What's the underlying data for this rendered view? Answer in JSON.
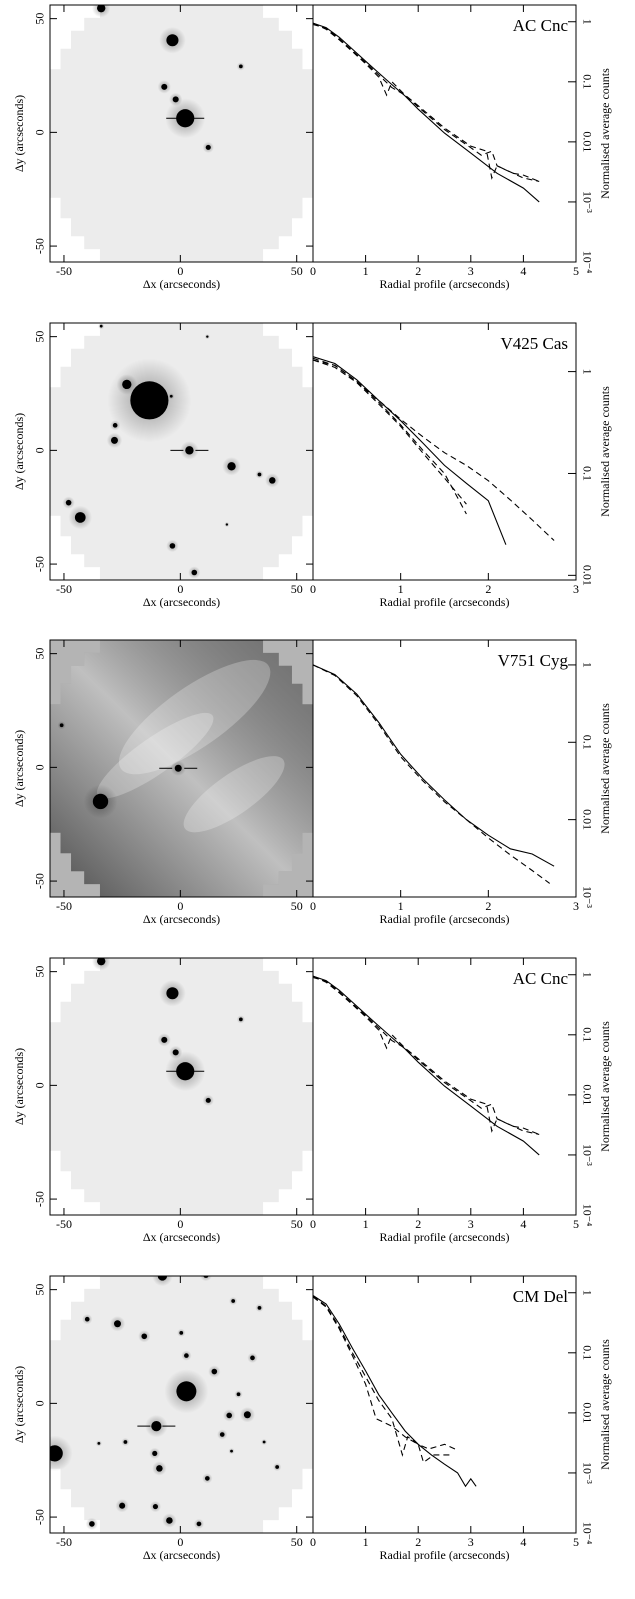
{
  "chart_data": [
    {
      "type": "image",
      "xlabel": "Δx (arcseconds)",
      "ylabel": "Δy (arcseconds)",
      "xlim": [
        -56,
        57
      ],
      "ylim": [
        -57,
        56
      ],
      "xticks": [
        -50,
        0,
        50
      ],
      "yticks": [
        -50,
        0,
        50
      ],
      "background": "#ececec",
      "outside": "#ffffff",
      "points": {
        "x": [
          2.1,
          -3.4,
          -34,
          -6.9,
          -2,
          26,
          12
        ],
        "y": [
          6.2,
          40.5,
          54.6,
          20,
          14.5,
          29,
          -6.6
        ],
        "size": [
          3.9,
          2.6,
          1.8,
          1.3,
          1.3,
          0.8,
          1.1
        ]
      },
      "marker": {
        "x": 2.1,
        "y": 6.2
      }
    },
    {
      "type": "line",
      "title": "AC Cnc",
      "xlabel": "Radial profile (arcseconds)",
      "ylabel": "Normalised average counts",
      "xlim": [
        0,
        5
      ],
      "ylim": [
        0.0001,
        1.9
      ],
      "log_y": true,
      "xticks": [
        0,
        1,
        2,
        3,
        4,
        5
      ],
      "yticks": [
        {
          "value": 0.0001,
          "label": "10⁻⁴"
        },
        {
          "value": 0.001,
          "label": "10⁻³"
        },
        0.01,
        0.1,
        1
      ],
      "series": [
        {
          "color": "#000000",
          "style": "solid",
          "x": [
            0,
            0.25,
            0.5,
            0.75,
            1,
            1.25,
            1.5,
            1.75,
            2,
            2.5,
            3,
            3.5,
            4,
            4.3
          ],
          "values": [
            0.95,
            0.8,
            0.55,
            0.35,
            0.22,
            0.14,
            0.09,
            0.058,
            0.035,
            0.014,
            0.0065,
            0.003,
            0.0017,
            0.001
          ]
        },
        {
          "color": "#000000",
          "style": "dashed",
          "x": [
            0,
            0.25,
            0.5,
            0.75,
            1,
            1.25,
            1.4,
            1.5,
            1.75,
            2,
            2.5,
            3,
            3.2,
            3.4,
            3.5,
            3.8,
            4,
            4.3
          ],
          "values": [
            0.95,
            0.75,
            0.5,
            0.32,
            0.2,
            0.12,
            0.06,
            0.1,
            0.06,
            0.038,
            0.016,
            0.008,
            0.006,
            0.007,
            0.004,
            0.003,
            0.0028,
            0.0022
          ]
        },
        {
          "color": "#000000",
          "style": "dashed",
          "x": [
            0,
            0.25,
            0.5,
            0.75,
            1,
            1.25,
            1.5,
            1.75,
            2,
            2.5,
            3,
            3.3,
            3.4,
            3.5,
            4,
            4.3
          ],
          "values": [
            0.9,
            0.78,
            0.52,
            0.33,
            0.21,
            0.13,
            0.08,
            0.06,
            0.04,
            0.017,
            0.0085,
            0.007,
            0.0025,
            0.004,
            0.0025,
            0.0022
          ]
        }
      ]
    },
    {
      "type": "image",
      "xlabel": "Δx (arcseconds)",
      "ylabel": "Δy (arcseconds)",
      "xlim": [
        -56,
        57
      ],
      "ylim": [
        -57,
        56
      ],
      "xticks": [
        -50,
        0,
        50
      ],
      "yticks": [
        -50,
        0,
        50
      ],
      "background": "#ececec",
      "outside": "#ffffff",
      "points": {
        "x": [
          -13.3,
          -23,
          -28,
          -28.3,
          3.9,
          22,
          39.5,
          34,
          -43,
          -48,
          -3.4,
          6,
          -34,
          11.6,
          -3.9,
          20
        ],
        "y": [
          22,
          29,
          11,
          4.4,
          0,
          -7,
          -13.2,
          -10.6,
          -29.5,
          -23,
          -42,
          -53.7,
          54.6,
          50,
          23.8,
          -32.6
        ],
        "size": [
          8.2,
          2,
          1,
          1.5,
          1.8,
          1.8,
          1.4,
          0.8,
          2.3,
          1.2,
          1.2,
          1.2,
          0.6,
          0.5,
          0.6,
          0.5
        ]
      },
      "marker": {
        "x": 3.9,
        "y": 0
      }
    },
    {
      "type": "line",
      "title": "V425 Cas",
      "xlabel": "Radial profile (arcseconds)",
      "ylabel": "Normalised average counts",
      "xlim": [
        0,
        3
      ],
      "ylim": [
        0.009,
        3
      ],
      "log_y": true,
      "xticks": [
        0,
        1,
        2,
        3
      ],
      "yticks": [
        0.01,
        0.1,
        1
      ],
      "series": [
        {
          "color": "#000000",
          "style": "solid",
          "x": [
            0,
            0.25,
            0.5,
            0.75,
            1,
            1.25,
            1.5,
            1.75,
            2,
            2.2
          ],
          "values": [
            1.4,
            1.2,
            0.83,
            0.52,
            0.33,
            0.2,
            0.12,
            0.08,
            0.054,
            0.02
          ]
        },
        {
          "color": "#000000",
          "style": "dashed",
          "x": [
            0,
            0.25,
            0.5,
            0.75,
            1,
            1.25,
            1.5,
            1.75,
            2,
            2.25,
            2.5,
            2.75
          ],
          "values": [
            1.3,
            1.15,
            0.8,
            0.52,
            0.34,
            0.23,
            0.16,
            0.12,
            0.085,
            0.055,
            0.035,
            0.022
          ]
        },
        {
          "color": "#000000",
          "style": "dashed",
          "x": [
            0,
            0.25,
            0.5,
            0.75,
            1,
            1.25,
            1.5,
            1.75
          ],
          "values": [
            1.35,
            1.15,
            0.8,
            0.5,
            0.3,
            0.17,
            0.1,
            0.04
          ]
        },
        {
          "color": "#000000",
          "style": "dashed",
          "x": [
            0,
            0.25,
            0.5,
            0.75,
            1,
            1.25,
            1.5,
            1.75
          ],
          "values": [
            1.3,
            1.1,
            0.78,
            0.48,
            0.29,
            0.16,
            0.09,
            0.05
          ]
        }
      ]
    },
    {
      "type": "image",
      "xlabel": "Δx (arcseconds)",
      "ylabel": "Δy (arcseconds)",
      "xlim": [
        -56,
        57
      ],
      "ylim": [
        -57,
        56
      ],
      "xticks": [
        -50,
        0,
        50
      ],
      "yticks": [
        -50,
        0,
        50
      ],
      "background": "#8c8c8c",
      "outside": "#b4b4b4",
      "nebula": true,
      "points": {
        "x": [
          -0.9,
          -34.3,
          -51
        ],
        "y": [
          -0.4,
          -15,
          18.5
        ],
        "size": [
          1.5,
          3.3,
          0.8
        ]
      },
      "marker": {
        "x": -0.9,
        "y": -0.4
      }
    },
    {
      "type": "line",
      "title": "V751 Cyg",
      "xlabel": "Radial profile (arcseconds)",
      "ylabel": "Normalised average counts",
      "xlim": [
        0,
        3
      ],
      "ylim": [
        0.001,
        2.1
      ],
      "log_y": true,
      "xticks": [
        0,
        1,
        2,
        3
      ],
      "yticks": [
        {
          "value": 0.001,
          "label": "10⁻³"
        },
        0.01,
        0.1,
        1
      ],
      "series": [
        {
          "color": "#000000",
          "style": "solid",
          "x": [
            0,
            0.25,
            0.5,
            0.75,
            1,
            1.25,
            1.5,
            1.75,
            2,
            2.25,
            2.5,
            2.75
          ],
          "values": [
            1,
            0.75,
            0.42,
            0.18,
            0.07,
            0.034,
            0.018,
            0.01,
            0.0063,
            0.0042,
            0.0036,
            0.0025
          ]
        },
        {
          "color": "#000000",
          "style": "dashed",
          "x": [
            0,
            0.25,
            0.5,
            0.75,
            1,
            1.25,
            1.5,
            1.75,
            2,
            2.25,
            2.5,
            2.7
          ],
          "values": [
            1,
            0.73,
            0.4,
            0.17,
            0.065,
            0.032,
            0.017,
            0.01,
            0.0058,
            0.0035,
            0.0022,
            0.0015
          ]
        }
      ]
    },
    {
      "type": "image",
      "xlabel": "Δx (arcseconds)",
      "ylabel": "Δy (arcseconds)",
      "xlim": [
        -56,
        57
      ],
      "ylim": [
        -57,
        56
      ],
      "xticks": [
        -50,
        0,
        50
      ],
      "yticks": [
        -50,
        0,
        50
      ],
      "background": "#ececec",
      "outside": "#ffffff",
      "points": {
        "x": [
          2.1,
          -3.4,
          -34,
          -6.9,
          -2,
          26,
          12
        ],
        "y": [
          6.2,
          40.5,
          54.6,
          20,
          14.5,
          29,
          -6.6
        ],
        "size": [
          3.9,
          2.6,
          1.8,
          1.3,
          1.3,
          0.8,
          1.1
        ]
      },
      "marker": {
        "x": 2.1,
        "y": 6.2
      }
    },
    {
      "type": "line",
      "title": "AC Cnc",
      "xlabel": "Radial profile (arcseconds)",
      "ylabel": "Normalised average counts",
      "xlim": [
        0,
        5
      ],
      "ylim": [
        0.0001,
        1.9
      ],
      "log_y": true,
      "xticks": [
        0,
        1,
        2,
        3,
        4,
        5
      ],
      "yticks": [
        {
          "value": 0.0001,
          "label": "10⁻⁴"
        },
        {
          "value": 0.001,
          "label": "10⁻³"
        },
        0.01,
        0.1,
        1
      ],
      "series": [
        {
          "color": "#000000",
          "style": "solid",
          "x": [
            0,
            0.25,
            0.5,
            0.75,
            1,
            1.25,
            1.5,
            1.75,
            2,
            2.5,
            3,
            3.5,
            4,
            4.3
          ],
          "values": [
            0.95,
            0.8,
            0.55,
            0.35,
            0.22,
            0.14,
            0.09,
            0.058,
            0.035,
            0.014,
            0.0065,
            0.003,
            0.0017,
            0.001
          ]
        },
        {
          "color": "#000000",
          "style": "dashed",
          "x": [
            0,
            0.25,
            0.5,
            0.75,
            1,
            1.25,
            1.4,
            1.5,
            1.75,
            2,
            2.5,
            3,
            3.2,
            3.4,
            3.5,
            3.8,
            4,
            4.3
          ],
          "values": [
            0.95,
            0.75,
            0.5,
            0.32,
            0.2,
            0.12,
            0.06,
            0.1,
            0.06,
            0.038,
            0.016,
            0.008,
            0.006,
            0.007,
            0.004,
            0.003,
            0.0028,
            0.0022
          ]
        },
        {
          "color": "#000000",
          "style": "dashed",
          "x": [
            0,
            0.25,
            0.5,
            0.75,
            1,
            1.25,
            1.5,
            1.75,
            2,
            2.5,
            3,
            3.3,
            3.4,
            3.5,
            4,
            4.3
          ],
          "values": [
            0.9,
            0.78,
            0.52,
            0.33,
            0.21,
            0.13,
            0.08,
            0.06,
            0.04,
            0.017,
            0.0085,
            0.007,
            0.0025,
            0.004,
            0.0025,
            0.0022
          ]
        }
      ]
    },
    {
      "type": "image",
      "xlabel": "Δx (arcseconds)",
      "ylabel": "Δy (arcseconds)",
      "xlim": [
        -56,
        57
      ],
      "ylim": [
        -57,
        56
      ],
      "xticks": [
        -50,
        0,
        50
      ],
      "yticks": [
        -50,
        0,
        50
      ],
      "background": "#ececec",
      "outside": "#ffffff",
      "points": {
        "x": [
          -7.7,
          11,
          -27,
          -40,
          -15.5,
          0.4,
          22.7,
          34,
          31,
          2.6,
          14.6,
          2.6,
          28.8,
          21,
          25,
          -10.3,
          18,
          -23.6,
          -35,
          -11,
          -9,
          11.6,
          -25,
          -10.7,
          -4.7,
          -54,
          41.6,
          36,
          22,
          -38,
          8
        ],
        "y": [
          56,
          56.4,
          35,
          37,
          29.5,
          31,
          45,
          42,
          20,
          21,
          14,
          5.3,
          -5,
          -5.3,
          4,
          -10,
          -13.7,
          -17,
          -17.6,
          -22,
          -28.6,
          -33,
          -45,
          -45.4,
          -51.5,
          -22,
          -28,
          -17,
          -21,
          -53,
          -53
        ],
        "size": [
          2,
          1.2,
          1.5,
          1,
          1.2,
          0.8,
          0.8,
          0.8,
          1,
          1,
          1.2,
          4.3,
          1.5,
          1.2,
          0.8,
          2.2,
          1,
          0.8,
          0.6,
          1.1,
          1.4,
          1,
          1.3,
          1.1,
          1.4,
          3.5,
          0.8,
          0.6,
          0.6,
          1.2,
          1
        ]
      },
      "marker": {
        "x": -10.3,
        "y": -10
      }
    },
    {
      "type": "line",
      "title": "CM Del",
      "xlabel": "Radial profile (arcseconds)",
      "ylabel": "Normalised average counts",
      "xlim": [
        0,
        5
      ],
      "ylim": [
        0.0001,
        1.9
      ],
      "log_y": true,
      "xticks": [
        0,
        1,
        2,
        3,
        4,
        5
      ],
      "yticks": [
        {
          "value": 0.0001,
          "label": "10⁻⁴"
        },
        {
          "value": 0.001,
          "label": "10⁻³"
        },
        0.01,
        0.1,
        1
      ],
      "series": [
        {
          "color": "#000000",
          "style": "solid",
          "x": [
            0,
            0.25,
            0.5,
            0.75,
            1,
            1.25,
            1.5,
            1.75,
            2,
            2.25,
            2.5,
            2.75,
            2.9,
            3,
            3.1
          ],
          "values": [
            0.9,
            0.65,
            0.3,
            0.12,
            0.05,
            0.02,
            0.01,
            0.005,
            0.003,
            0.002,
            0.0014,
            0.001,
            0.0006,
            0.0008,
            0.0006
          ]
        },
        {
          "color": "#000000",
          "style": "dashed",
          "x": [
            0,
            0.25,
            0.5,
            0.75,
            1,
            1.25,
            1.5,
            1.7,
            1.8,
            2,
            2.2,
            2.5,
            2.7
          ],
          "values": [
            0.88,
            0.6,
            0.27,
            0.1,
            0.04,
            0.016,
            0.008,
            0.002,
            0.004,
            0.003,
            0.0025,
            0.003,
            0.0025
          ]
        },
        {
          "color": "#000000",
          "style": "dashed",
          "x": [
            0,
            0.25,
            0.5,
            0.75,
            1,
            1.2,
            1.5,
            1.75,
            2,
            2.1,
            2.3,
            2.6
          ],
          "values": [
            0.85,
            0.58,
            0.25,
            0.09,
            0.03,
            0.008,
            0.006,
            0.004,
            0.003,
            0.0015,
            0.002,
            0.002
          ]
        }
      ]
    }
  ]
}
